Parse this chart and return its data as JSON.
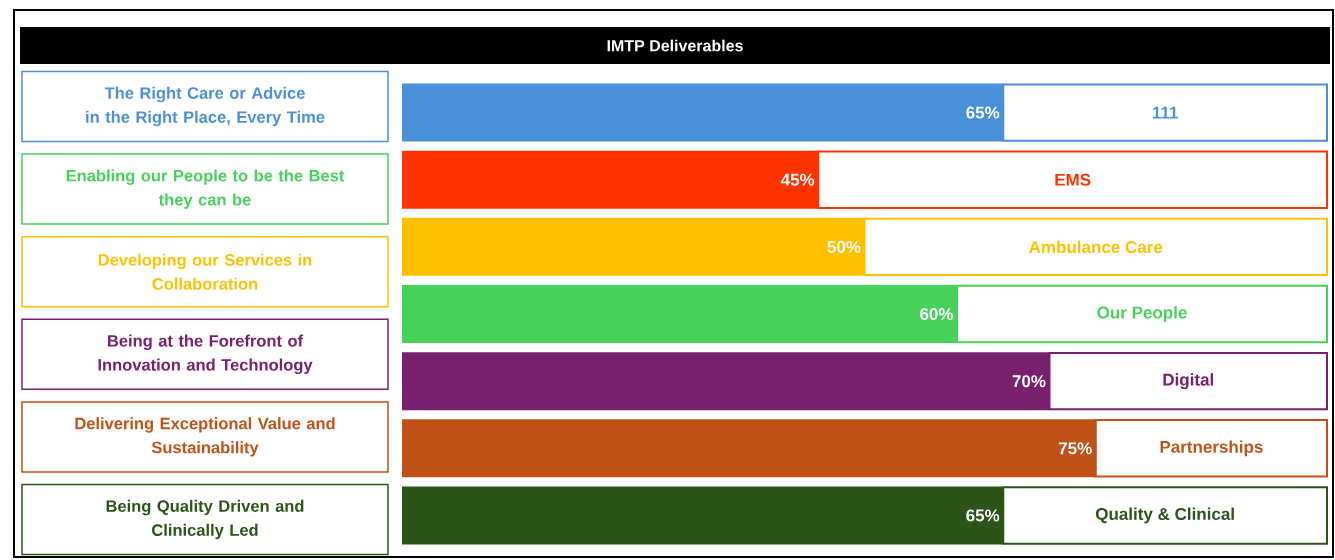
{
  "chart_data": {
    "type": "bar",
    "orientation": "horizontal",
    "title": "IMTP Deliverables",
    "categories": [
      "111",
      "EMS",
      "Ambulance Care",
      "Our People",
      "Digital",
      "Partnerships",
      "Quality & Clinical"
    ],
    "values": [
      65,
      45,
      50,
      60,
      70,
      75,
      65
    ],
    "value_labels": [
      "65%",
      "45%",
      "50%",
      "60%",
      "70%",
      "75%",
      "65%"
    ],
    "colors": [
      "#4a90d9",
      "#ff3300",
      "#ffc000",
      "#47d15a",
      "#78206e",
      "#c05217",
      "#2a5418"
    ],
    "xlim": [
      0,
      100
    ],
    "annotations": [
      "The Right Care or Advice\nin the Right Place, Every Time",
      "Enabling our People to be the Best\nthey can be",
      "Developing our Services in\nCollaboration",
      "Being at the Forefront of\nInnovation and Technology",
      "Delivering Exceptional Value and\nSustainability",
      "Being Quality Driven and\nClinically Led"
    ]
  }
}
